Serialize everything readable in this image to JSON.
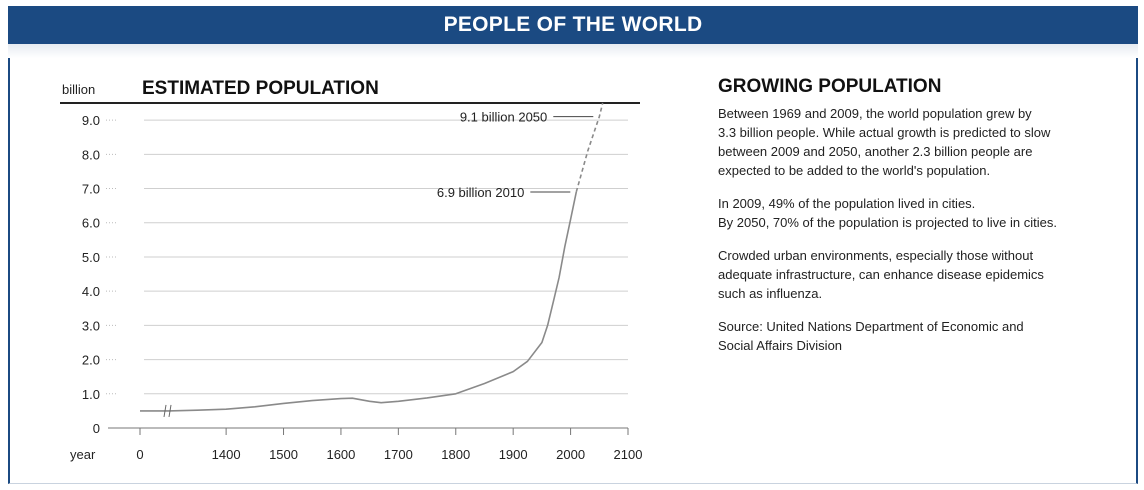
{
  "banner": {
    "title": "PEOPLE OF THE WORLD"
  },
  "colors": {
    "banner": "#1b4a82",
    "line": "#8a8a8a",
    "grid": "#cfcfcf"
  },
  "chart_data": {
    "type": "line",
    "title": "ESTIMATED POPULATION",
    "ylabel": "billion",
    "xlabel": "year",
    "ylim": [
      0,
      9.5
    ],
    "xlim": [
      1250,
      2100
    ],
    "grid": true,
    "x_axis_break": true,
    "y_ticks": [
      "0",
      "1.0",
      "2.0",
      "3.0",
      "4.0",
      "5.0",
      "6.0",
      "7.0",
      "8.0",
      "9.0"
    ],
    "x_ticks": [
      "0",
      "1400",
      "1500",
      "1600",
      "1700",
      "1800",
      "1900",
      "2000",
      "2100"
    ],
    "series": [
      {
        "style": "solid",
        "points": [
          [
            1250,
            0.5
          ],
          [
            1300,
            0.5
          ],
          [
            1350,
            0.52
          ],
          [
            1400,
            0.55
          ],
          [
            1450,
            0.62
          ],
          [
            1500,
            0.72
          ],
          [
            1550,
            0.8
          ],
          [
            1600,
            0.86
          ],
          [
            1620,
            0.87
          ],
          [
            1650,
            0.78
          ],
          [
            1670,
            0.74
          ],
          [
            1700,
            0.78
          ],
          [
            1750,
            0.88
          ],
          [
            1800,
            1.0
          ],
          [
            1850,
            1.3
          ],
          [
            1900,
            1.65
          ],
          [
            1925,
            1.95
          ],
          [
            1950,
            2.5
          ],
          [
            1960,
            3.0
          ],
          [
            1970,
            3.7
          ],
          [
            1980,
            4.4
          ],
          [
            1990,
            5.3
          ],
          [
            2000,
            6.1
          ],
          [
            2010,
            6.9
          ]
        ]
      },
      {
        "style": "dashed",
        "points": [
          [
            2010,
            6.9
          ],
          [
            2030,
            8.1
          ],
          [
            2050,
            9.1
          ],
          [
            2056,
            9.5
          ]
        ]
      }
    ],
    "annotations": [
      {
        "text": "9.1 billion 2050",
        "x": 2050,
        "y": 9.1
      },
      {
        "text": "6.9 billion 2010",
        "x": 2010,
        "y": 6.9
      }
    ]
  },
  "side": {
    "title": "GROWING POPULATION",
    "paragraphs": [
      "Between 1969 and 2009, the world population grew by\n3.3 billion people. While actual growth is predicted to slow\nbetween 2009 and 2050, another 2.3 billion people are\nexpected to be added to the world's population.",
      "In 2009, 49% of the population lived in cities.\nBy 2050, 70% of the population is projected to live in cities.",
      "Crowded urban environments, especially those without\nadequate infrastructure, can enhance disease epidemics\nsuch as influenza.",
      "Source: United Nations Department of Economic and\nSocial Affairs Division"
    ]
  }
}
